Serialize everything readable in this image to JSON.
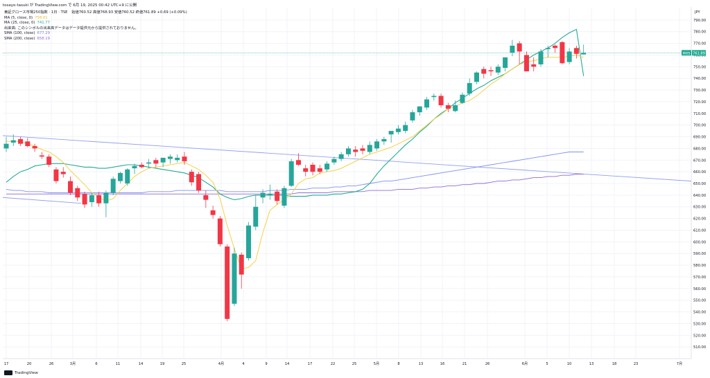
{
  "header": {
    "text": "tosayo-tasuki が TradingView.com で 6月 19, 2025 00:42 UTC+9 に公開"
  },
  "legend": {
    "title": "東証グロース市場250指数 · 1日 · TSE",
    "ohlc": "始値760.52 高値768.93 安値760.52 終値761.89 +0.69 (+0.09%)",
    "ma5": {
      "label": "MA (5, close, 0)",
      "value": "758.01"
    },
    "ma25": {
      "label": "MA (25, close, 0)",
      "value": "741.77"
    },
    "volume_note": "出来高: このシンボルの出来高データはデータ提供元から提供されておりません。",
    "sma100": {
      "label": "SMA (100, close)",
      "value": "677.29"
    },
    "sma200": {
      "label": "SMA (200, close)",
      "value": "658.19"
    }
  },
  "footer": {
    "brand": "TradingView"
  },
  "price_axis": {
    "currency": "JPY",
    "current_label": "MOS",
    "current_value": "761.89"
  },
  "colors": {
    "up": "#26a69a",
    "down": "#f23645",
    "ma5": "#f7d044",
    "ma25": "#22ab94",
    "sma100": "#7e8ff0",
    "sma200": "#8e6ad8",
    "trendline": "#8f9ef0",
    "current": "#22ab94"
  },
  "chart_data": {
    "type": "candlestick",
    "ylim": [
      500,
      800
    ],
    "y_ticks": [
      510,
      520,
      530,
      540,
      550,
      560,
      570,
      580,
      590,
      600,
      610,
      620,
      630,
      640,
      650,
      660,
      670,
      680,
      690,
      700,
      710,
      720,
      730,
      740,
      750,
      760,
      770,
      780,
      790
    ],
    "x_tick_labels": [
      "17",
      "20",
      "26",
      "3月",
      "6",
      "11",
      "14",
      "19",
      "25",
      "4月",
      "4",
      "9",
      "14",
      "17",
      "22",
      "25",
      "5月",
      "8",
      "13",
      "16",
      "21",
      "26",
      "6月",
      "5",
      "10",
      "13",
      "18",
      "23",
      "7月"
    ],
    "candles": [
      {
        "o": 680,
        "h": 690,
        "l": 677,
        "c": 684
      },
      {
        "o": 685,
        "h": 692,
        "l": 682,
        "c": 687
      },
      {
        "o": 688,
        "h": 690,
        "l": 682,
        "c": 684
      },
      {
        "o": 686,
        "h": 689,
        "l": 681,
        "c": 682
      },
      {
        "o": 682,
        "h": 684,
        "l": 677,
        "c": 680
      },
      {
        "o": 674,
        "h": 677,
        "l": 671,
        "c": 673
      },
      {
        "o": 673,
        "h": 675,
        "l": 664,
        "c": 666
      },
      {
        "o": 662,
        "h": 664,
        "l": 650,
        "c": 652
      },
      {
        "o": 660,
        "h": 664,
        "l": 655,
        "c": 658
      },
      {
        "o": 652,
        "h": 656,
        "l": 640,
        "c": 642
      },
      {
        "o": 646,
        "h": 648,
        "l": 635,
        "c": 638
      },
      {
        "o": 641,
        "h": 643,
        "l": 629,
        "c": 632
      },
      {
        "o": 634,
        "h": 642,
        "l": 630,
        "c": 640
      },
      {
        "o": 640,
        "h": 643,
        "l": 630,
        "c": 633
      },
      {
        "o": 633,
        "h": 644,
        "l": 621,
        "c": 642
      },
      {
        "o": 642,
        "h": 656,
        "l": 640,
        "c": 654
      },
      {
        "o": 652,
        "h": 660,
        "l": 650,
        "c": 659
      },
      {
        "o": 650,
        "h": 663,
        "l": 648,
        "c": 662
      },
      {
        "o": 663,
        "h": 667,
        "l": 658,
        "c": 665
      },
      {
        "o": 666,
        "h": 668,
        "l": 663,
        "c": 664
      },
      {
        "o": 667,
        "h": 671,
        "l": 663,
        "c": 668
      },
      {
        "o": 670,
        "h": 672,
        "l": 664,
        "c": 667
      },
      {
        "o": 668,
        "h": 670,
        "l": 664,
        "c": 672
      },
      {
        "o": 671,
        "h": 675,
        "l": 667,
        "c": 673
      },
      {
        "o": 670,
        "h": 675,
        "l": 668,
        "c": 672
      },
      {
        "o": 673,
        "h": 677,
        "l": 666,
        "c": 669
      },
      {
        "o": 660,
        "h": 662,
        "l": 648,
        "c": 651
      },
      {
        "o": 658,
        "h": 660,
        "l": 642,
        "c": 644
      },
      {
        "o": 640,
        "h": 644,
        "l": 629,
        "c": 636
      },
      {
        "o": 627,
        "h": 631,
        "l": 620,
        "c": 623
      },
      {
        "o": 620,
        "h": 622,
        "l": 596,
        "c": 598
      },
      {
        "o": 596,
        "h": 598,
        "l": 532,
        "c": 534
      },
      {
        "o": 547,
        "h": 595,
        "l": 545,
        "c": 590
      },
      {
        "o": 589,
        "h": 591,
        "l": 560,
        "c": 572
      },
      {
        "o": 586,
        "h": 617,
        "l": 584,
        "c": 614
      },
      {
        "o": 613,
        "h": 640,
        "l": 610,
        "c": 630
      },
      {
        "o": 638,
        "h": 645,
        "l": 633,
        "c": 642
      },
      {
        "o": 640,
        "h": 649,
        "l": 636,
        "c": 641
      },
      {
        "o": 643,
        "h": 645,
        "l": 632,
        "c": 635
      },
      {
        "o": 631,
        "h": 648,
        "l": 629,
        "c": 646
      },
      {
        "o": 648,
        "h": 671,
        "l": 647,
        "c": 669
      },
      {
        "o": 670,
        "h": 676,
        "l": 665,
        "c": 666
      },
      {
        "o": 663,
        "h": 666,
        "l": 656,
        "c": 660
      },
      {
        "o": 666,
        "h": 668,
        "l": 657,
        "c": 660
      },
      {
        "o": 663,
        "h": 666,
        "l": 658,
        "c": 660
      },
      {
        "o": 662,
        "h": 669,
        "l": 660,
        "c": 667
      },
      {
        "o": 668,
        "h": 673,
        "l": 666,
        "c": 671
      },
      {
        "o": 671,
        "h": 677,
        "l": 669,
        "c": 675
      },
      {
        "o": 675,
        "h": 682,
        "l": 673,
        "c": 680
      },
      {
        "o": 679,
        "h": 682,
        "l": 673,
        "c": 677
      },
      {
        "o": 680,
        "h": 683,
        "l": 675,
        "c": 678
      },
      {
        "o": 677,
        "h": 686,
        "l": 675,
        "c": 683
      },
      {
        "o": 680,
        "h": 688,
        "l": 678,
        "c": 686
      },
      {
        "o": 686,
        "h": 690,
        "l": 683,
        "c": 688
      },
      {
        "o": 692,
        "h": 694,
        "l": 685,
        "c": 695
      },
      {
        "o": 694,
        "h": 700,
        "l": 692,
        "c": 697
      },
      {
        "o": 695,
        "h": 703,
        "l": 693,
        "c": 700
      },
      {
        "o": 704,
        "h": 713,
        "l": 702,
        "c": 711
      },
      {
        "o": 711,
        "h": 716,
        "l": 708,
        "c": 716
      },
      {
        "o": 715,
        "h": 724,
        "l": 713,
        "c": 722
      },
      {
        "o": 724,
        "h": 727,
        "l": 721,
        "c": 725
      },
      {
        "o": 725,
        "h": 727,
        "l": 715,
        "c": 717
      },
      {
        "o": 717,
        "h": 719,
        "l": 711,
        "c": 714
      },
      {
        "o": 712,
        "h": 721,
        "l": 711,
        "c": 717
      },
      {
        "o": 719,
        "h": 728,
        "l": 718,
        "c": 726
      },
      {
        "o": 727,
        "h": 740,
        "l": 725,
        "c": 736
      },
      {
        "o": 737,
        "h": 746,
        "l": 735,
        "c": 745
      },
      {
        "o": 748,
        "h": 750,
        "l": 740,
        "c": 744
      },
      {
        "o": 747,
        "h": 750,
        "l": 742,
        "c": 746
      },
      {
        "o": 745,
        "h": 752,
        "l": 743,
        "c": 750
      },
      {
        "o": 749,
        "h": 758,
        "l": 746,
        "c": 758
      },
      {
        "o": 762,
        "h": 773,
        "l": 759,
        "c": 768
      },
      {
        "o": 770,
        "h": 772,
        "l": 752,
        "c": 763
      },
      {
        "o": 760,
        "h": 763,
        "l": 746,
        "c": 746
      },
      {
        "o": 752,
        "h": 758,
        "l": 746,
        "c": 750
      },
      {
        "o": 752,
        "h": 765,
        "l": 750,
        "c": 763
      },
      {
        "o": 765,
        "h": 768,
        "l": 758,
        "c": 766
      },
      {
        "o": 768,
        "h": 769,
        "l": 762,
        "c": 766
      },
      {
        "o": 771,
        "h": 772,
        "l": 752,
        "c": 753
      },
      {
        "o": 754,
        "h": 766,
        "l": 752,
        "c": 763
      },
      {
        "o": 766,
        "h": 768,
        "l": 757,
        "c": 761
      },
      {
        "o": 760.52,
        "h": 768.93,
        "l": 760.52,
        "c": 761.89
      }
    ],
    "ma5": [
      686,
      686,
      686,
      684,
      682,
      679,
      677,
      673,
      668,
      661,
      655,
      649,
      642,
      638,
      635,
      637,
      644,
      650,
      656,
      660,
      663,
      664,
      665,
      666,
      667,
      668,
      665,
      662,
      657,
      651,
      637,
      614,
      594,
      577,
      578,
      584,
      608,
      627,
      632,
      636,
      641,
      650,
      654,
      655,
      659,
      660,
      661,
      663,
      666,
      669,
      672,
      675,
      677,
      679,
      681,
      684,
      687,
      690,
      695,
      700,
      705,
      709,
      714,
      716,
      719,
      721,
      725,
      730,
      735,
      739,
      744,
      748,
      752,
      754,
      755,
      757,
      758,
      758,
      758,
      759,
      760,
      758
    ],
    "ma25": [
      651,
      656,
      660,
      662,
      665,
      666,
      667,
      667,
      667,
      666,
      665,
      664,
      664,
      663,
      663,
      664,
      665,
      666,
      666,
      665,
      664,
      663,
      662,
      661,
      660,
      659,
      657,
      655,
      651,
      647,
      641,
      638,
      636,
      637,
      639,
      640,
      640,
      640,
      640,
      640,
      639,
      639,
      639,
      640,
      640,
      640,
      641,
      641,
      642,
      643,
      645,
      650,
      658,
      665,
      671,
      677,
      683,
      688,
      694,
      699,
      705,
      710,
      714,
      719,
      723,
      727,
      731,
      734,
      738,
      741,
      744,
      748,
      752,
      756,
      760,
      763,
      766,
      770,
      775,
      779,
      782,
      742
    ],
    "sma100": [
      645,
      644,
      644,
      643,
      643,
      643,
      642,
      642,
      642,
      642,
      642,
      642,
      642,
      642,
      642,
      642,
      642,
      642,
      642,
      642,
      643,
      643,
      643,
      643,
      644,
      644,
      644,
      644,
      644,
      644,
      644,
      643,
      643,
      643,
      643,
      643,
      643,
      644,
      644,
      644,
      645,
      645,
      645,
      646,
      646,
      646,
      647,
      647,
      648,
      648,
      649,
      650,
      651,
      652,
      652,
      653,
      654,
      655,
      656,
      657,
      658,
      659,
      660,
      661,
      662,
      663,
      664,
      665,
      666,
      667,
      668,
      669,
      670,
      671,
      672,
      673,
      674,
      675,
      676,
      677,
      677,
      677
    ],
    "sma200": [
      641,
      641,
      641,
      641,
      641,
      641,
      641,
      641,
      641,
      641,
      641,
      641,
      641,
      641,
      641,
      641,
      641,
      641,
      641,
      641,
      641,
      641,
      641,
      641,
      641,
      641,
      641,
      641,
      641,
      641,
      641,
      641,
      641,
      641,
      641,
      641,
      641,
      641,
      641,
      641,
      641,
      642,
      642,
      642,
      642,
      642,
      643,
      643,
      643,
      643,
      643,
      644,
      644,
      644,
      644,
      645,
      645,
      645,
      646,
      646,
      647,
      647,
      648,
      648,
      649,
      649,
      650,
      650,
      651,
      652,
      652,
      653,
      653,
      654,
      655,
      655,
      656,
      656,
      657,
      657,
      658,
      658
    ],
    "trendline": {
      "from": 691,
      "to": 652
    },
    "trendline_short": {
      "from": 638,
      "to": 633
    },
    "current_price": 761.89
  }
}
